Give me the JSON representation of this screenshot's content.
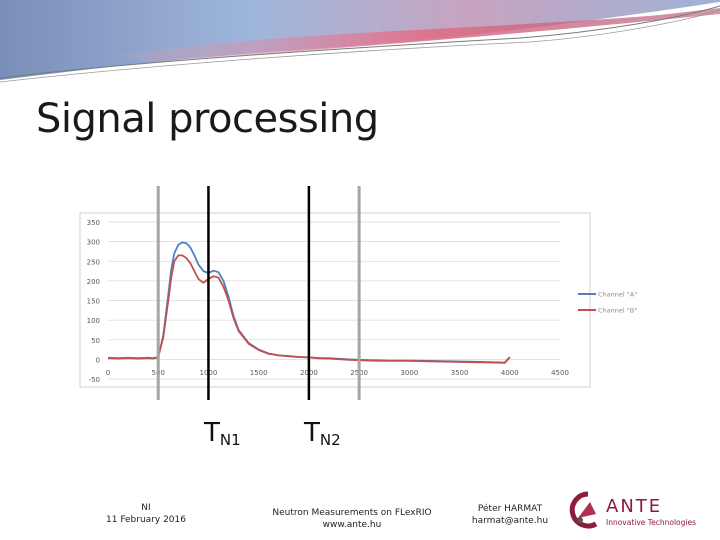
{
  "slide": {
    "title": "Signal processing",
    "tn1_base": "T",
    "tn1_sub": "N1",
    "tn2_base": "T",
    "tn2_sub": "N2"
  },
  "footer": {
    "left_line1": "NI",
    "left_line2": "11 February 2016",
    "center_line1": "Neutron Measurements on FLexRIO",
    "center_line2": "www.ante.hu",
    "right_line1": "Péter HARMAT",
    "right_line2": "harmat@ante.hu"
  },
  "logo": {
    "name": "ANTE",
    "tagline": "Innovative Technologies",
    "brand_color": "#8c1c3a"
  },
  "colors": {
    "channel_a": "#4f81bd",
    "channel_b": "#c0504d",
    "gray_marker": "#a6a6a6",
    "black_marker": "#000000"
  },
  "chart_data": {
    "type": "line",
    "xlim": [
      0,
      4500
    ],
    "ylim": [
      -50,
      350
    ],
    "x_ticks": [
      "0",
      "500",
      "1000",
      "1500",
      "2000",
      "2500",
      "3000",
      "3500",
      "4000",
      "4500"
    ],
    "y_ticks": [
      "350",
      "300",
      "250",
      "200",
      "150",
      "100",
      "50",
      "0",
      "-50"
    ],
    "grid": true,
    "legend_position": "right",
    "vertical_markers": [
      {
        "x": 500,
        "style": "gray"
      },
      {
        "x": 1000,
        "style": "black"
      },
      {
        "x": 2000,
        "style": "black"
      },
      {
        "x": 2500,
        "style": "gray"
      }
    ],
    "series": [
      {
        "name": "Channel \"A\"",
        "x": [
          0,
          100,
          200,
          300,
          400,
          450,
          500,
          550,
          600,
          630,
          660,
          700,
          740,
          780,
          820,
          860,
          900,
          950,
          1000,
          1050,
          1100,
          1150,
          1200,
          1250,
          1300,
          1400,
          1500,
          1600,
          1700,
          1800,
          1900,
          2000,
          2100,
          2200,
          2400,
          2600,
          2800,
          3000,
          3200,
          3400,
          3600,
          3800,
          3950,
          4000
        ],
        "values": [
          3,
          2,
          3,
          2,
          3,
          2,
          5,
          60,
          165,
          230,
          270,
          292,
          298,
          296,
          285,
          265,
          242,
          225,
          220,
          226,
          222,
          200,
          160,
          110,
          75,
          42,
          25,
          15,
          10,
          8,
          6,
          5,
          3,
          3,
          0,
          -2,
          -3,
          -3,
          -4,
          -5,
          -6,
          -7,
          -8,
          5
        ]
      },
      {
        "name": "Channel \"B\"",
        "x": [
          0,
          100,
          200,
          300,
          400,
          450,
          500,
          550,
          600,
          630,
          660,
          700,
          740,
          780,
          820,
          860,
          900,
          950,
          1000,
          1050,
          1100,
          1150,
          1200,
          1250,
          1300,
          1400,
          1500,
          1600,
          1700,
          1800,
          1900,
          2000,
          2100,
          2200,
          2400,
          2600,
          2800,
          3000,
          3200,
          3400,
          3600,
          3800,
          3950,
          4000
        ],
        "values": [
          4,
          3,
          4,
          3,
          4,
          3,
          6,
          55,
          150,
          210,
          250,
          265,
          265,
          258,
          245,
          225,
          205,
          195,
          205,
          212,
          208,
          185,
          150,
          105,
          72,
          40,
          24,
          14,
          10,
          8,
          6,
          5,
          3,
          2,
          -1,
          -3,
          -4,
          -4,
          -5,
          -6,
          -7,
          -8,
          -9,
          6
        ]
      }
    ]
  }
}
